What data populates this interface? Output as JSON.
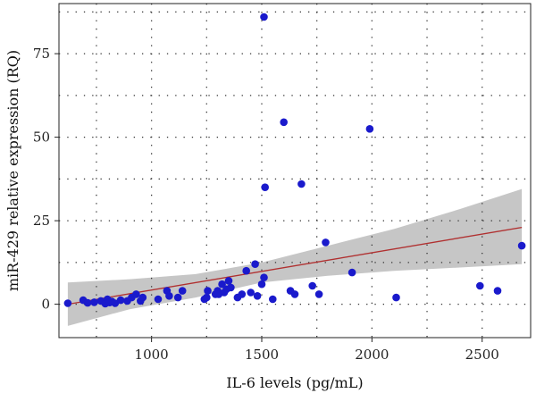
{
  "chart_data": {
    "type": "scatter",
    "title": "",
    "xlabel": "IL-6 levels (pg/mL)",
    "ylabel": "miR-429 relative expression (RQ)",
    "xlim": [
      580,
      2720
    ],
    "ylim": [
      -10,
      90
    ],
    "xticks": [
      1000,
      1500,
      2000,
      2500
    ],
    "xtick_labels": [
      "1000",
      "1500",
      "2000",
      "2500"
    ],
    "yticks": [
      0,
      25,
      50,
      75
    ],
    "ytick_labels": [
      "0",
      "25",
      "50",
      "75"
    ],
    "grid": true,
    "point_color": "#1a1acc",
    "fit_line_color": "#b03030",
    "confidence_band_color": "#c6c6c6",
    "points": [
      {
        "x": 620,
        "y": 0.3
      },
      {
        "x": 690,
        "y": 1.2
      },
      {
        "x": 710,
        "y": 0.4
      },
      {
        "x": 740,
        "y": 0.6
      },
      {
        "x": 770,
        "y": 1.0
      },
      {
        "x": 790,
        "y": 0.2
      },
      {
        "x": 800,
        "y": 1.5
      },
      {
        "x": 810,
        "y": 0.5
      },
      {
        "x": 820,
        "y": 0.8
      },
      {
        "x": 835,
        "y": 0.3
      },
      {
        "x": 860,
        "y": 1.2
      },
      {
        "x": 890,
        "y": 1.0
      },
      {
        "x": 910,
        "y": 2.0
      },
      {
        "x": 930,
        "y": 3.0
      },
      {
        "x": 950,
        "y": 1.0
      },
      {
        "x": 960,
        "y": 2.0
      },
      {
        "x": 1030,
        "y": 1.5
      },
      {
        "x": 1070,
        "y": 4.0
      },
      {
        "x": 1080,
        "y": 2.5
      },
      {
        "x": 1120,
        "y": 2.0
      },
      {
        "x": 1140,
        "y": 4.0
      },
      {
        "x": 1240,
        "y": 1.5
      },
      {
        "x": 1250,
        "y": 2.0
      },
      {
        "x": 1255,
        "y": 4.0
      },
      {
        "x": 1290,
        "y": 3.0
      },
      {
        "x": 1300,
        "y": 4.0
      },
      {
        "x": 1305,
        "y": 3.0
      },
      {
        "x": 1320,
        "y": 6.0
      },
      {
        "x": 1330,
        "y": 3.5
      },
      {
        "x": 1340,
        "y": 4.5
      },
      {
        "x": 1350,
        "y": 7.0
      },
      {
        "x": 1360,
        "y": 5.0
      },
      {
        "x": 1390,
        "y": 2.0
      },
      {
        "x": 1410,
        "y": 3.0
      },
      {
        "x": 1430,
        "y": 10.0
      },
      {
        "x": 1450,
        "y": 3.5
      },
      {
        "x": 1470,
        "y": 12.0
      },
      {
        "x": 1480,
        "y": 2.5
      },
      {
        "x": 1500,
        "y": 6.0
      },
      {
        "x": 1510,
        "y": 8.0
      },
      {
        "x": 1515,
        "y": 35.0
      },
      {
        "x": 1510,
        "y": 86.0
      },
      {
        "x": 1550,
        "y": 1.5
      },
      {
        "x": 1600,
        "y": 54.5
      },
      {
        "x": 1630,
        "y": 4.0
      },
      {
        "x": 1650,
        "y": 3.0
      },
      {
        "x": 1680,
        "y": 36.0
      },
      {
        "x": 1730,
        "y": 5.5
      },
      {
        "x": 1760,
        "y": 3.0
      },
      {
        "x": 1790,
        "y": 18.5
      },
      {
        "x": 1910,
        "y": 9.5
      },
      {
        "x": 1990,
        "y": 52.5
      },
      {
        "x": 2110,
        "y": 2.0
      },
      {
        "x": 2490,
        "y": 5.5
      },
      {
        "x": 2570,
        "y": 4.0
      },
      {
        "x": 2680,
        "y": 17.5
      }
    ],
    "fit_line": [
      {
        "x": 620,
        "y": 0.0
      },
      {
        "x": 2680,
        "y": 23.0
      }
    ],
    "confidence_band": [
      {
        "x": 620,
        "lower": -6.5,
        "upper": 6.5
      },
      {
        "x": 900,
        "lower": -1.5,
        "upper": 7.5
      },
      {
        "x": 1200,
        "lower": 2.0,
        "upper": 9.0
      },
      {
        "x": 1500,
        "lower": 6.5,
        "upper": 12.5
      },
      {
        "x": 1800,
        "lower": 8.5,
        "upper": 17.5
      },
      {
        "x": 2100,
        "lower": 10.0,
        "upper": 22.5
      },
      {
        "x": 2400,
        "lower": 11.0,
        "upper": 28.5
      },
      {
        "x": 2680,
        "lower": 12.0,
        "upper": 34.5
      }
    ]
  }
}
